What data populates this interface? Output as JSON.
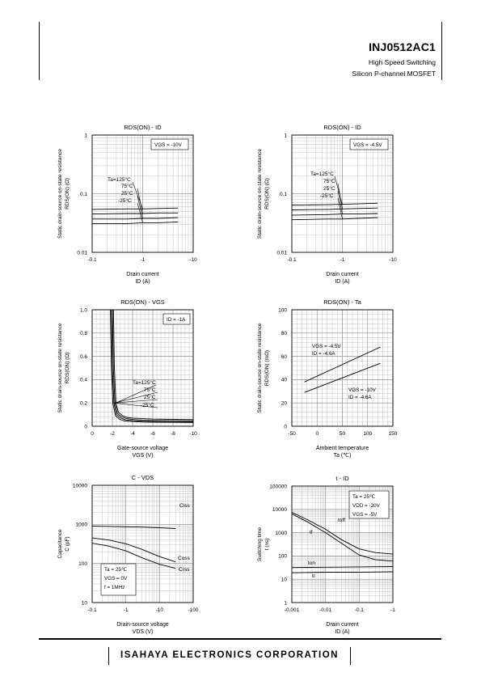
{
  "header": {
    "part_number": "INJ0512AC1",
    "subtitle_line1": "High Speed Switching",
    "subtitle_line2": "Silicon P-channel MOSFET"
  },
  "footer": {
    "company": "ISAHAYA ELECTRONICS CORPORATION"
  },
  "chart_data": [
    {
      "type": "line",
      "title": "RDS(ON) - ID",
      "xlabel": [
        "Drain current",
        "ID (A)"
      ],
      "ylabel": [
        "Static drain-source on-state resistance",
        "RDS(ON) (Ω)"
      ],
      "xscale": "log",
      "yscale": "log",
      "xlim": [
        0.1,
        10
      ],
      "ylim": [
        0.01,
        1
      ],
      "xticks": [
        0.1,
        1,
        10
      ],
      "xtick_labels": [
        "-0.1",
        "-1",
        "-10"
      ],
      "yticks": [
        0.01,
        0.1,
        1
      ],
      "ytick_labels": [
        "0.01",
        "0.1",
        "1"
      ],
      "condition": "VGS = -10V",
      "grid": true,
      "series": [
        {
          "name": "Ta=125°C",
          "x": [
            0.1,
            0.5,
            1.0,
            2.0,
            5.0
          ],
          "y": [
            0.054,
            0.055,
            0.055,
            0.056,
            0.057
          ]
        },
        {
          "name": "75°C",
          "x": [
            0.1,
            0.5,
            1.0,
            2.0,
            5.0
          ],
          "y": [
            0.045,
            0.046,
            0.046,
            0.047,
            0.047
          ]
        },
        {
          "name": "25°C",
          "x": [
            0.1,
            0.5,
            1.0,
            2.0,
            5.0
          ],
          "y": [
            0.037,
            0.037,
            0.038,
            0.038,
            0.039
          ]
        },
        {
          "name": "-25°C",
          "x": [
            0.1,
            0.5,
            1.0,
            2.0,
            5.0
          ],
          "y": [
            0.031,
            0.031,
            0.032,
            0.032,
            0.033
          ]
        }
      ]
    },
    {
      "type": "line",
      "title": "RDS(ON) - ID",
      "xlabel": [
        "Drain current",
        "ID (A)"
      ],
      "ylabel": [
        "Static drain-source on-state resistance",
        "RDS(ON) (Ω)"
      ],
      "xscale": "log",
      "yscale": "log",
      "xlim": [
        0.1,
        10
      ],
      "ylim": [
        0.01,
        1
      ],
      "xticks": [
        0.1,
        1,
        10
      ],
      "xtick_labels": [
        "-0.1",
        "-1",
        "-10"
      ],
      "yticks": [
        0.01,
        0.1,
        1
      ],
      "ytick_labels": [
        "0.01",
        "0.1",
        "1"
      ],
      "condition": "VGS = -4.5V",
      "grid": true,
      "series": [
        {
          "name": "Ta=125°C",
          "x": [
            0.1,
            0.5,
            1.0,
            2.0,
            5.0
          ],
          "y": [
            0.064,
            0.065,
            0.066,
            0.067,
            0.069
          ]
        },
        {
          "name": "75°C",
          "x": [
            0.1,
            0.5,
            1.0,
            2.0,
            5.0
          ],
          "y": [
            0.053,
            0.054,
            0.055,
            0.056,
            0.057
          ]
        },
        {
          "name": "25°C",
          "x": [
            0.1,
            0.5,
            1.0,
            2.0,
            5.0
          ],
          "y": [
            0.043,
            0.044,
            0.045,
            0.045,
            0.046
          ]
        },
        {
          "name": "-25°C",
          "x": [
            0.1,
            0.5,
            1.0,
            2.0,
            5.0
          ],
          "y": [
            0.036,
            0.037,
            0.037,
            0.038,
            0.039
          ]
        }
      ]
    },
    {
      "type": "line",
      "title": "RDS(ON) - VGS",
      "xlabel": [
        "Gate-source voltage",
        "VGS (V)"
      ],
      "ylabel": [
        "Static drain-source on-state resistance",
        "RDS(ON) (Ω)"
      ],
      "xscale": "linear",
      "yscale": "linear",
      "xlim": [
        0,
        10
      ],
      "ylim": [
        0,
        1
      ],
      "xticks": [
        0,
        2,
        4,
        6,
        8,
        10
      ],
      "xtick_labels": [
        "0",
        "-2",
        "-4",
        "-6",
        "-8",
        "-10"
      ],
      "yticks": [
        0,
        0.2,
        0.4,
        0.6,
        0.8,
        1.0
      ],
      "ytick_labels": [
        "0",
        "0.2",
        "0.4",
        "0.6",
        "0.8",
        "1.0"
      ],
      "condition": "ID = -1A",
      "grid": true,
      "series": [
        {
          "name": "Ta=125°C",
          "x": [
            2.1,
            2.2,
            2.35,
            2.6,
            3.0,
            3.5,
            4.0,
            5.0,
            6.0,
            8.0,
            10.0
          ],
          "y": [
            1.0,
            0.5,
            0.2,
            0.12,
            0.09,
            0.075,
            0.07,
            0.065,
            0.062,
            0.059,
            0.057
          ]
        },
        {
          "name": "75°C",
          "x": [
            2.0,
            2.1,
            2.25,
            2.5,
            2.9,
            3.4,
            4.0,
            5.0,
            6.0,
            8.0,
            10.0
          ],
          "y": [
            1.0,
            0.5,
            0.2,
            0.11,
            0.08,
            0.065,
            0.058,
            0.053,
            0.05,
            0.048,
            0.047
          ]
        },
        {
          "name": "25°C",
          "x": [
            1.9,
            2.0,
            2.15,
            2.4,
            2.8,
            3.3,
            4.0,
            5.0,
            6.0,
            8.0,
            10.0
          ],
          "y": [
            1.0,
            0.5,
            0.2,
            0.1,
            0.07,
            0.055,
            0.048,
            0.043,
            0.041,
            0.039,
            0.038
          ]
        },
        {
          "name": "-25°C",
          "x": [
            1.8,
            1.9,
            2.05,
            2.3,
            2.7,
            3.2,
            4.0,
            5.0,
            6.0,
            8.0,
            10.0
          ],
          "y": [
            1.0,
            0.5,
            0.2,
            0.09,
            0.06,
            0.046,
            0.04,
            0.036,
            0.034,
            0.033,
            0.032
          ]
        }
      ]
    },
    {
      "type": "line",
      "title": "RDS(ON) - Ta",
      "xlabel": [
        "Ambient temperature",
        "Ta (℃)"
      ],
      "ylabel": [
        "Static drain-source on-state resistance",
        "RDS(ON) (mΩ)"
      ],
      "xscale": "linear",
      "yscale": "linear",
      "xlim": [
        -50,
        150
      ],
      "ylim": [
        0,
        100
      ],
      "xticks": [
        -50,
        0,
        50,
        100,
        150
      ],
      "xtick_labels": [
        "-50",
        "0",
        "50",
        "100",
        "150"
      ],
      "yticks": [
        0,
        20,
        40,
        60,
        80,
        100
      ],
      "ytick_labels": [
        "0",
        "20",
        "40",
        "60",
        "80",
        "100"
      ],
      "grid": true,
      "series": [
        {
          "label_lines": [
            "VGS = -4.5V",
            "ID = -4.6A"
          ],
          "x": [
            -25,
            125
          ],
          "y": [
            38,
            68
          ]
        },
        {
          "label_lines": [
            "VGS = -10V",
            "ID = -4.6A"
          ],
          "x": [
            -25,
            125
          ],
          "y": [
            29,
            54
          ]
        }
      ]
    },
    {
      "type": "line",
      "title": "C - VDS",
      "xlabel": [
        "Drain-source voltage",
        "VDS (V)"
      ],
      "ylabel": [
        "Capacitance",
        "C (pF)"
      ],
      "xscale": "log",
      "yscale": "log",
      "xlim": [
        0.1,
        100
      ],
      "ylim": [
        10,
        10000
      ],
      "xticks": [
        0.1,
        1,
        10,
        100
      ],
      "xtick_labels": [
        "-0.1",
        "-1",
        "-10",
        "-100"
      ],
      "yticks": [
        10,
        100,
        1000,
        10000
      ],
      "ytick_labels": [
        "10",
        "100",
        "1000",
        "10000"
      ],
      "condition_lines": [
        "Ta = 25℃",
        "VGS = 0V",
        "f = 1MHz"
      ],
      "grid": true,
      "series": [
        {
          "name": "Ciss",
          "x": [
            0.1,
            0.3,
            1,
            3,
            10,
            30
          ],
          "y": [
            900,
            890,
            870,
            850,
            820,
            780
          ]
        },
        {
          "name": "Coss",
          "x": [
            0.1,
            0.3,
            1,
            3,
            10,
            30
          ],
          "y": [
            450,
            400,
            320,
            230,
            150,
            110
          ]
        },
        {
          "name": "Crss",
          "x": [
            0.1,
            0.3,
            1,
            3,
            10,
            30
          ],
          "y": [
            330,
            280,
            210,
            140,
            95,
            75
          ]
        }
      ]
    },
    {
      "type": "line",
      "title": "t - ID",
      "xlabel": [
        "Drain current",
        "ID (A)"
      ],
      "ylabel": [
        "Switching time",
        "t (ns)"
      ],
      "xscale": "log",
      "yscale": "log",
      "xlim": [
        0.001,
        1
      ],
      "ylim": [
        1,
        100000
      ],
      "xticks": [
        0.001,
        0.01,
        0.1,
        1
      ],
      "xtick_labels": [
        "-0.001",
        "-0.01",
        "-0.1",
        "-1"
      ],
      "yticks": [
        1,
        10,
        100,
        1000,
        10000,
        100000
      ],
      "ytick_labels": [
        "1",
        "10",
        "100",
        "1000",
        "10000",
        "100000"
      ],
      "condition_lines": [
        "Ta = 25℃",
        "VDD = -20V",
        "VGS = -5V"
      ],
      "grid": true,
      "series": [
        {
          "name": "toff",
          "x": [
            0.001,
            0.003,
            0.01,
            0.03,
            0.1,
            0.3,
            1
          ],
          "y": [
            7500,
            3500,
            1400,
            500,
            200,
            140,
            120
          ]
        },
        {
          "name": "tf",
          "x": [
            0.001,
            0.003,
            0.01,
            0.03,
            0.1,
            0.3,
            1
          ],
          "y": [
            6500,
            2800,
            1000,
            350,
            110,
            70,
            60
          ]
        },
        {
          "name": "ton",
          "x": [
            0.001,
            0.01,
            0.1,
            1
          ],
          "y": [
            32,
            33,
            34,
            35
          ]
        },
        {
          "name": "tr",
          "x": [
            0.001,
            0.01,
            0.1,
            1
          ],
          "y": [
            19,
            20,
            20,
            21
          ]
        }
      ]
    }
  ]
}
